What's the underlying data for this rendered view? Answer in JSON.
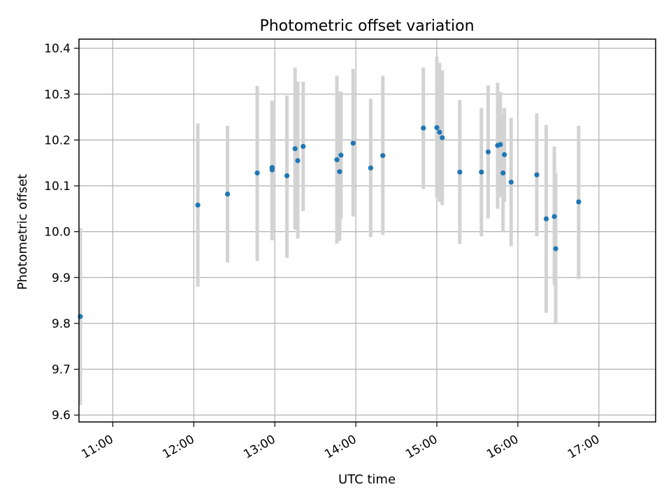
{
  "chart_data": {
    "type": "scatter",
    "title": "Photometric offset variation",
    "xlabel": "UTC time",
    "ylabel": "Photometric offset",
    "x_unit": "time of day (UTC)",
    "xlim": [
      "10:36",
      "17:42"
    ],
    "ylim": [
      9.585,
      10.42
    ],
    "x_ticks": [
      "11:00",
      "12:00",
      "13:00",
      "14:00",
      "15:00",
      "16:00",
      "17:00"
    ],
    "y_ticks": [
      9.6,
      9.7,
      9.8,
      9.9,
      10.0,
      10.1,
      10.2,
      10.3,
      10.4
    ],
    "y_tick_labels": [
      "9.6",
      "9.7",
      "9.8",
      "9.9",
      "10.0",
      "10.1",
      "10.2",
      "10.3",
      "10.4"
    ],
    "grid": true,
    "colors": {
      "marker": "#1f77b4",
      "errorbar": "#d3d3d3",
      "grid": "#b0b0b0",
      "axes": "#000000"
    },
    "series": [
      {
        "points": [
          {
            "x": "10:36",
            "y": 9.815,
            "ylow": 9.622,
            "yhigh": 10.008
          },
          {
            "x": "12:03",
            "y": 10.058,
            "ylow": 9.88,
            "yhigh": 10.236
          },
          {
            "x": "12:25",
            "y": 10.082,
            "ylow": 9.933,
            "yhigh": 10.231
          },
          {
            "x": "12:47",
            "y": 10.128,
            "ylow": 9.936,
            "yhigh": 10.318
          },
          {
            "x": "12:58",
            "y": 10.135,
            "ylow": 9.981,
            "yhigh": 10.286
          },
          {
            "x": "12:58",
            "y": 10.14,
            "ylow": 9.995,
            "yhigh": 10.285
          },
          {
            "x": "13:09",
            "y": 10.122,
            "ylow": 9.943,
            "yhigh": 10.297
          },
          {
            "x": "13:15",
            "y": 10.181,
            "ylow": 10.005,
            "yhigh": 10.358
          },
          {
            "x": "13:17",
            "y": 10.155,
            "ylow": 9.985,
            "yhigh": 10.327
          },
          {
            "x": "13:21",
            "y": 10.186,
            "ylow": 10.045,
            "yhigh": 10.327
          },
          {
            "x": "13:46",
            "y": 10.157,
            "ylow": 9.974,
            "yhigh": 10.34
          },
          {
            "x": "13:48",
            "y": 10.131,
            "ylow": 9.98,
            "yhigh": 10.306
          },
          {
            "x": "13:49",
            "y": 10.167,
            "ylow": 10.027,
            "yhigh": 10.306
          },
          {
            "x": "13:58",
            "y": 10.193,
            "ylow": 10.033,
            "yhigh": 10.355
          },
          {
            "x": "14:11",
            "y": 10.139,
            "ylow": 9.988,
            "yhigh": 10.29
          },
          {
            "x": "14:20",
            "y": 10.166,
            "ylow": 9.993,
            "yhigh": 10.34
          },
          {
            "x": "14:50",
            "y": 10.226,
            "ylow": 10.093,
            "yhigh": 10.358
          },
          {
            "x": "15:00",
            "y": 10.227,
            "ylow": 10.075,
            "yhigh": 10.382
          },
          {
            "x": "15:02",
            "y": 10.217,
            "ylow": 10.065,
            "yhigh": 10.368
          },
          {
            "x": "15:04",
            "y": 10.205,
            "ylow": 10.058,
            "yhigh": 10.352
          },
          {
            "x": "15:17",
            "y": 10.13,
            "ylow": 9.973,
            "yhigh": 10.287
          },
          {
            "x": "15:33",
            "y": 10.13,
            "ylow": 9.99,
            "yhigh": 10.27
          },
          {
            "x": "15:38",
            "y": 10.174,
            "ylow": 10.029,
            "yhigh": 10.319
          },
          {
            "x": "15:45",
            "y": 10.188,
            "ylow": 10.05,
            "yhigh": 10.325
          },
          {
            "x": "15:47",
            "y": 10.19,
            "ylow": 10.075,
            "yhigh": 10.305
          },
          {
            "x": "15:49",
            "y": 10.128,
            "ylow": 10.0,
            "yhigh": 10.256
          },
          {
            "x": "15:50",
            "y": 10.168,
            "ylow": 10.065,
            "yhigh": 10.27
          },
          {
            "x": "15:55",
            "y": 10.108,
            "ylow": 9.968,
            "yhigh": 10.248
          },
          {
            "x": "16:14",
            "y": 10.124,
            "ylow": 9.99,
            "yhigh": 10.258
          },
          {
            "x": "16:21",
            "y": 10.028,
            "ylow": 9.823,
            "yhigh": 10.233
          },
          {
            "x": "16:27",
            "y": 10.033,
            "ylow": 9.884,
            "yhigh": 10.186
          },
          {
            "x": "16:28",
            "y": 9.963,
            "ylow": 9.798,
            "yhigh": 10.128
          },
          {
            "x": "16:45",
            "y": 10.065,
            "ylow": 9.897,
            "yhigh": 10.231
          }
        ]
      }
    ]
  }
}
